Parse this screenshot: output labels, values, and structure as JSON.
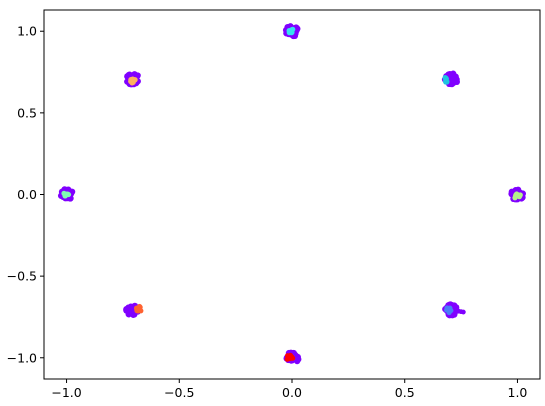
{
  "chart_data": {
    "type": "scatter",
    "title": "",
    "xlabel": "",
    "ylabel": "",
    "xlim": [
      -1.1,
      1.1
    ],
    "ylim": [
      -1.13,
      1.13
    ],
    "grid": false,
    "legend": "none",
    "x_ticks": [
      {
        "value": -1.0,
        "label": "−1.0"
      },
      {
        "value": -0.5,
        "label": "−0.5"
      },
      {
        "value": 0.0,
        "label": "0.0"
      },
      {
        "value": 0.5,
        "label": "0.5"
      },
      {
        "value": 1.0,
        "label": "1.0"
      }
    ],
    "y_ticks": [
      {
        "value": 1.0,
        "label": "1.0"
      },
      {
        "value": 0.5,
        "label": "0.5"
      },
      {
        "value": 0.0,
        "label": "0.0"
      },
      {
        "value": -0.5,
        "label": "−0.5"
      },
      {
        "value": -1.0,
        "label": "−1.0"
      }
    ],
    "clusters": [
      {
        "center": [
          0.0,
          1.0
        ],
        "base_color": "#8000ff",
        "overlay_color": "#36e0f0",
        "overlay_offset": [
          0.0,
          0.0
        ],
        "tail": null
      },
      {
        "center": [
          0.707,
          0.707
        ],
        "base_color": "#8000ff",
        "overlay_color": "#20c4e0",
        "overlay_offset": [
          -0.02,
          -0.005
        ],
        "tail": null
      },
      {
        "center": [
          1.0,
          0.0
        ],
        "base_color": "#8000ff",
        "overlay_color": "#b4f08c",
        "overlay_offset": [
          0.0,
          -0.01
        ],
        "tail": null
      },
      {
        "center": [
          0.707,
          -0.707
        ],
        "base_color": "#8000ff",
        "overlay_color": "#4a7af8",
        "overlay_offset": [
          -0.01,
          0.0
        ],
        "tail": [
          0.76,
          -0.72
        ]
      },
      {
        "center": [
          0.0,
          -1.0
        ],
        "base_color": "#8000ff",
        "overlay_color": "#ff0000",
        "overlay_offset": [
          -0.01,
          0.0
        ],
        "tail": null
      },
      {
        "center": [
          -0.707,
          -0.707
        ],
        "base_color": "#8000ff",
        "overlay_color": "#ff6230",
        "overlay_offset": [
          0.03,
          0.005
        ],
        "tail": null
      },
      {
        "center": [
          -1.0,
          0.0
        ],
        "base_color": "#8000ff",
        "overlay_color": "#80fab4",
        "overlay_offset": [
          0.0,
          0.0
        ],
        "tail": null
      },
      {
        "center": [
          -0.707,
          0.707
        ],
        "base_color": "#8000ff",
        "overlay_color": "#ffb060",
        "overlay_offset": [
          0.0,
          -0.01
        ],
        "tail": null
      }
    ]
  }
}
